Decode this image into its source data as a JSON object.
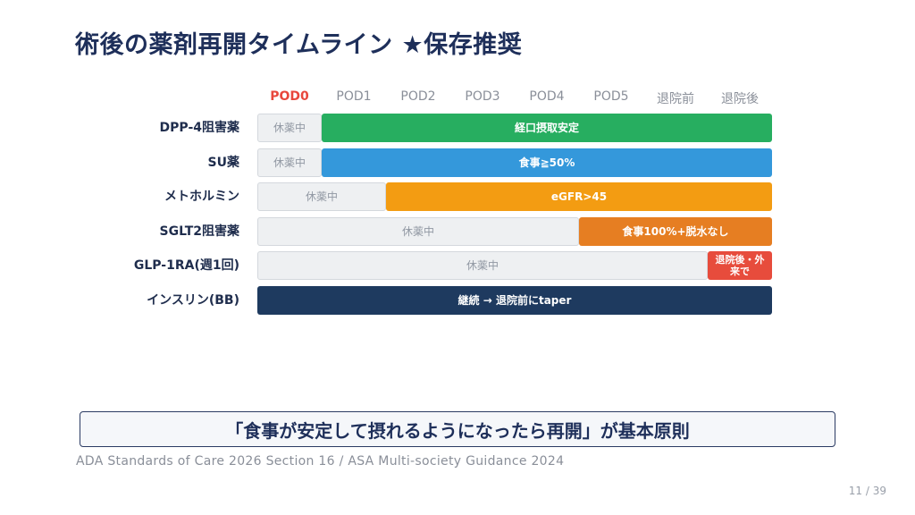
{
  "title": "術後の薬剤再開タイムライン ★保存推奨",
  "columns": [
    "POD0",
    "POD1",
    "POD2",
    "POD3",
    "POD4",
    "POD5",
    "退院前",
    "退院後"
  ],
  "rows": [
    {
      "label": "DPP-4阻害薬",
      "rest": "休薬中",
      "resume": "経口摂取安定",
      "resume_color": "#27ae60",
      "rest_columns": 1
    },
    {
      "label": "SU薬",
      "rest": "休薬中",
      "resume": "食事≧50%",
      "resume_color": "#3498db",
      "rest_columns": 1
    },
    {
      "label": "メトホルミン",
      "rest": "休薬中",
      "resume": "eGFR>45",
      "resume_color": "#f39c12",
      "rest_columns": 2
    },
    {
      "label": "SGLT2阻害薬",
      "rest": "休薬中",
      "resume": "食事100%+脱水なし",
      "resume_color": "#e67e22",
      "rest_columns": 5
    },
    {
      "label": "GLP-1RA(週1回)",
      "rest": "休薬中",
      "resume": "退院後・外来で",
      "resume_color": "#e74c3c",
      "rest_columns": 7
    },
    {
      "label": "インスリン(BB)",
      "rest": "",
      "resume": "継続 → 退院前にtaper",
      "resume_color": "#1e3a5f",
      "rest_columns": 0
    }
  ],
  "principle": "「食事が安定して摂れるようになったら再開」が基本原則",
  "source": "ADA Standards of Care 2026 Section 16 / ASA Multi-society Guidance 2024",
  "page": "11 / 39",
  "colors": {
    "title": "#1e2f5a",
    "active_column": "#e8473c"
  }
}
